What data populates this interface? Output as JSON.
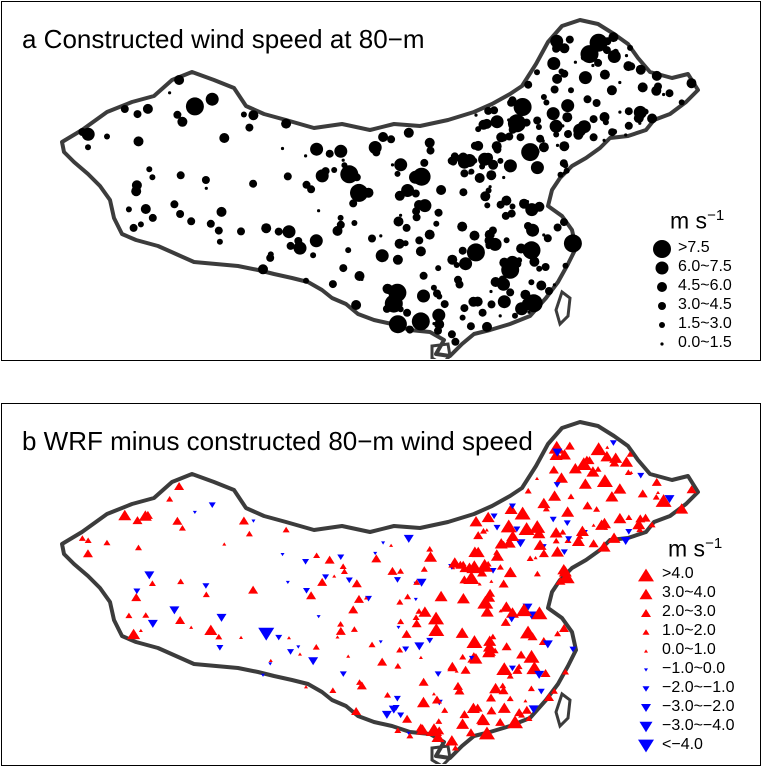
{
  "panel_a": {
    "title": "a Constructed wind speed at 80−m",
    "legend": {
      "unit": "m s",
      "unit_exp": "−1",
      "classes": [
        ">7.5",
        "6.0~7.5",
        "4.5~6.0",
        "3.0~4.5",
        "1.5~3.0",
        "0.0~1.5"
      ]
    },
    "marker_color": "#000000"
  },
  "panel_b": {
    "title": "b WRF minus constructed 80−m wind speed",
    "legend": {
      "unit": "m s",
      "unit_exp": "−1",
      "classes": [
        ">4.0",
        "3.0~4.0",
        "2.0~3.0",
        "1.0~2.0",
        "0.0~1.0",
        "−1.0~0.0",
        "−2.0~−1.0",
        "−3.0~−2.0",
        "−3.0~−4.0",
        "<−4.0"
      ]
    },
    "positive_color": "#ff0000",
    "negative_color": "#0000ff"
  },
  "outline_color": "#3c3c3c"
}
